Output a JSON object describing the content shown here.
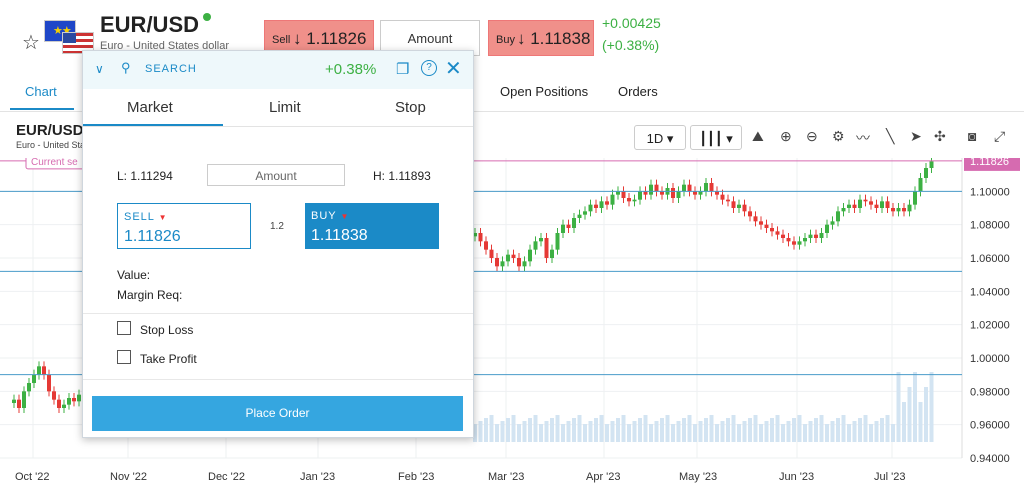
{
  "header": {
    "symbol": "EUR/USD",
    "description": "Euro - United States dollar",
    "sell_label": "Sell",
    "sell_price": "↓ 1.11826",
    "amount_placeholder": "Amount",
    "buy_label": "Buy",
    "buy_price": "↓ 1.11838",
    "change_abs": "+0.00425",
    "change_pct": "(+0.38%)"
  },
  "tabs": [
    {
      "label": "Chart"
    },
    {
      "label": "Open Positions"
    },
    {
      "label": "Orders"
    }
  ],
  "chart_header": {
    "symbol": "EUR/USD",
    "description": "Euro - United States dollar",
    "timeframe": "1D",
    "current_label": "Current se"
  },
  "chart_data": {
    "type": "candlestick",
    "x_ticks": [
      "Oct '22",
      "Nov '22",
      "Dec '22",
      "Jan '23",
      "Feb '23",
      "Mar '23",
      "Apr '23",
      "May '23",
      "Jun '23",
      "Jul '23"
    ],
    "y_ticks": [
      "1.10000",
      "1.08000",
      "1.06000",
      "1.04000",
      "1.02000",
      "1.00000",
      "0.98000",
      "0.96000",
      "0.94000"
    ],
    "ylim": [
      0.94,
      1.12
    ],
    "current_price": "1.11826",
    "visible_closes_right": [
      1.075,
      1.07,
      1.065,
      1.06,
      1.055,
      1.058,
      1.062,
      1.06,
      1.055,
      1.058,
      1.065,
      1.07,
      1.072,
      1.06,
      1.065,
      1.075,
      1.08,
      1.078,
      1.084,
      1.086,
      1.088,
      1.092,
      1.09,
      1.094,
      1.092,
      1.098,
      1.1,
      1.096,
      1.094,
      1.095,
      1.1,
      1.098,
      1.104,
      1.1,
      1.098,
      1.102,
      1.096,
      1.1,
      1.104,
      1.1,
      1.098,
      1.1,
      1.105,
      1.1,
      1.098,
      1.095,
      1.094,
      1.09,
      1.092,
      1.088,
      1.085,
      1.082,
      1.08,
      1.078,
      1.076,
      1.074,
      1.072,
      1.07,
      1.068,
      1.07,
      1.072,
      1.074,
      1.072,
      1.075,
      1.08,
      1.082,
      1.088,
      1.09,
      1.092,
      1.09,
      1.095,
      1.094,
      1.092,
      1.09,
      1.094,
      1.09,
      1.088,
      1.09,
      1.088,
      1.092,
      1.1,
      1.108,
      1.114,
      1.118
    ],
    "visible_closes_left": [
      0.975,
      0.97,
      0.98,
      0.985,
      0.99,
      0.995,
      0.99,
      0.98,
      0.975,
      0.97,
      0.972,
      0.976,
      0.974,
      0.978,
      0.982,
      0.986
    ]
  },
  "order_panel": {
    "search_label": "SEARCH",
    "change_pct": "+0.38%",
    "tabs": [
      "Market",
      "Limit",
      "Stop"
    ],
    "low": "L: 1.11294",
    "high": "H: 1.11893",
    "amount_placeholder": "Amount",
    "sell_label": "SELL",
    "sell_value": "1.11826",
    "buy_label": "BUY",
    "buy_value": "1.11838",
    "spread": "1.2",
    "value_label": "Value:",
    "margin_label": "Margin Req:",
    "stop_loss_label": "Stop Loss",
    "take_profit_label": "Take Profit",
    "place_order_label": "Place Order"
  },
  "colors": {
    "accent": "#1b8ac7",
    "up": "#3cb043",
    "down": "#e53935",
    "sell_button": "#f0908a",
    "place_order": "#35a6e0",
    "current_line": "#d66bb0"
  }
}
